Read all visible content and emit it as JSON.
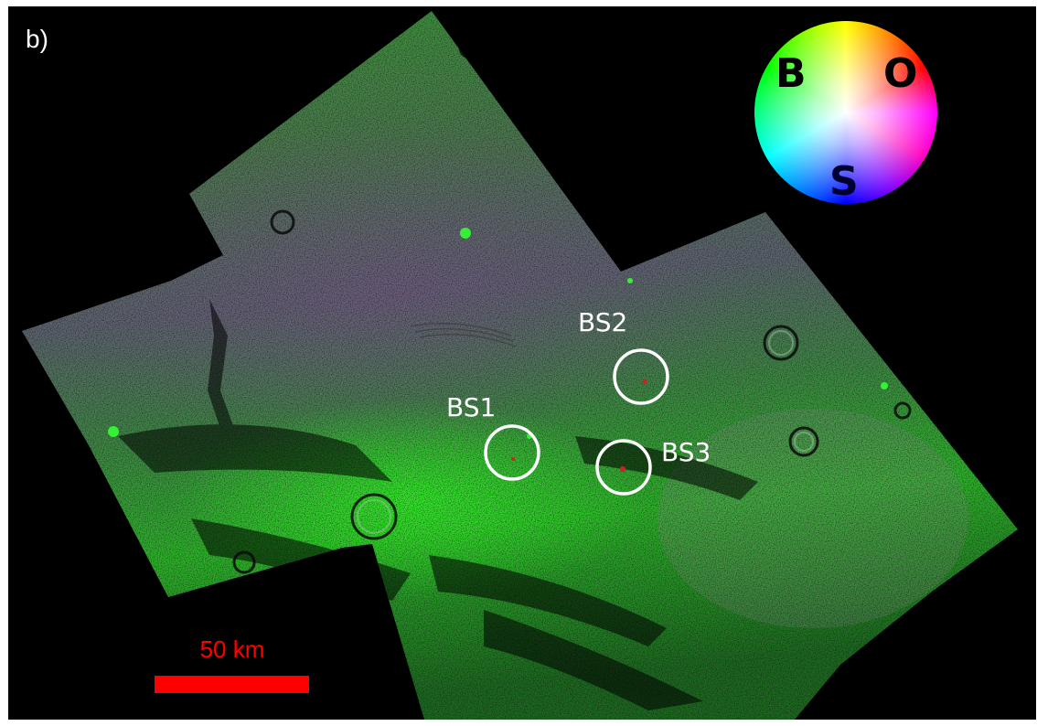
{
  "panel_label": "b)",
  "sites": [
    {
      "label": "BS1"
    },
    {
      "label": "BS2"
    },
    {
      "label": "BS3"
    }
  ],
  "color_wheel": {
    "letters": [
      {
        "text": "B",
        "color": "#000000"
      },
      {
        "text": "O",
        "color": "#000000"
      },
      {
        "text": "S",
        "color": "#000030"
      }
    ]
  },
  "scale_bar": {
    "text": "50 km",
    "color": "#ff0000"
  },
  "colors": {
    "background": "#000000",
    "terrain_green": "#3fbf3a",
    "terrain_purple": "#6a5a7a",
    "annotation": "#ffffff"
  }
}
